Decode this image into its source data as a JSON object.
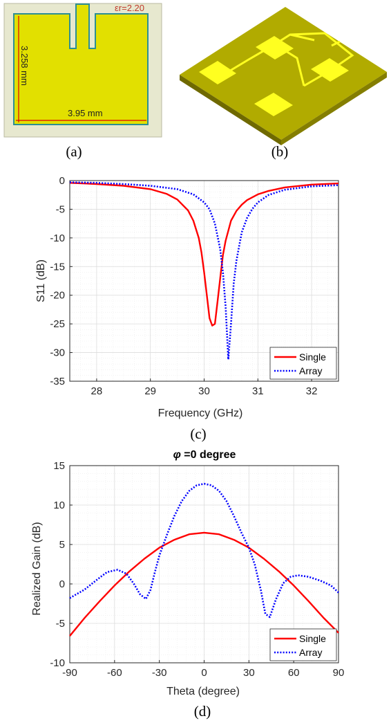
{
  "figure_a": {
    "caption": "(a)",
    "epsilon_label": "εr=2.20",
    "height_label": "3.258 mm",
    "width_label": "3.95 mm",
    "colors": {
      "background": "#e7e8cf",
      "patch": "#e2e000",
      "edge": "#2d8e93",
      "dim": "#e00000"
    }
  },
  "figure_b": {
    "caption": "(b)",
    "colors": {
      "substrate_top": "#b1ab00",
      "substrate_side": "#6f6900",
      "patch": "#ffff20"
    }
  },
  "chart_data": [
    {
      "type": "line",
      "caption": "(c)",
      "title": "",
      "xlabel": "Frequency (GHz)",
      "ylabel": "S11 (dB)",
      "xlim": [
        27.5,
        32.5
      ],
      "ylim": [
        -35,
        0
      ],
      "xticks": [
        "28",
        "29",
        "30",
        "31",
        "32"
      ],
      "xtick_values": [
        28,
        29,
        30,
        31,
        32
      ],
      "yticks": [
        "0",
        "-5",
        "-10",
        "-15",
        "-20",
        "-25",
        "-30",
        "-35"
      ],
      "ytick_values": [
        0,
        -5,
        -10,
        -15,
        -20,
        -25,
        -30,
        -35
      ],
      "grid": true,
      "legend_position": "bottom-right",
      "series": [
        {
          "name": "Single",
          "color": "#ff0000",
          "style": "solid",
          "x": [
            27.5,
            28,
            28.5,
            29,
            29.3,
            29.5,
            29.7,
            29.8,
            29.9,
            29.95,
            30,
            30.05,
            30.1,
            30.15,
            30.2,
            30.25,
            30.3,
            30.35,
            30.4,
            30.5,
            30.6,
            30.7,
            30.8,
            31,
            31.2,
            31.5,
            32,
            32.5
          ],
          "y": [
            -0.4,
            -0.6,
            -0.9,
            -1.5,
            -2.3,
            -3.3,
            -5.2,
            -7,
            -10,
            -12.5,
            -16,
            -20,
            -24,
            -25.3,
            -25,
            -21,
            -17,
            -13,
            -10.5,
            -7,
            -5.3,
            -4.2,
            -3.4,
            -2.4,
            -1.8,
            -1.2,
            -0.7,
            -0.5
          ]
        },
        {
          "name": "Array",
          "color": "#0000ff",
          "style": "dotted",
          "x": [
            27.5,
            28,
            28.5,
            29,
            29.5,
            29.8,
            30,
            30.1,
            30.2,
            30.3,
            30.35,
            30.4,
            30.45,
            30.5,
            30.55,
            30.6,
            30.7,
            30.8,
            30.9,
            31,
            31.2,
            31.5,
            32,
            32.5
          ],
          "y": [
            -0.3,
            -0.4,
            -0.6,
            -0.9,
            -1.5,
            -2.4,
            -3.8,
            -5,
            -7.5,
            -12,
            -16,
            -22,
            -31.2,
            -25,
            -18,
            -14,
            -9,
            -6.5,
            -4.9,
            -3.8,
            -2.5,
            -1.6,
            -1,
            -0.8
          ]
        }
      ]
    },
    {
      "type": "line",
      "caption": "(d)",
      "title_symbol": "φ",
      "title_rest": " =0 degree",
      "xlabel": "Theta (degree)",
      "ylabel": "Realized Gain (dB)",
      "xlim": [
        -90,
        90
      ],
      "ylim": [
        -10,
        15
      ],
      "xticks": [
        "-90",
        "-60",
        "-30",
        "0",
        "30",
        "60",
        "90"
      ],
      "xtick_values": [
        -90,
        -60,
        -30,
        0,
        30,
        60,
        90
      ],
      "yticks": [
        "15",
        "10",
        "5",
        "0",
        "-5",
        "-10"
      ],
      "ytick_values": [
        15,
        10,
        5,
        0,
        -5,
        -10
      ],
      "grid": true,
      "legend_position": "bottom-right",
      "series": [
        {
          "name": "Single",
          "color": "#ff0000",
          "style": "solid",
          "x": [
            -90,
            -80,
            -70,
            -60,
            -50,
            -40,
            -30,
            -20,
            -10,
            0,
            10,
            20,
            30,
            40,
            50,
            60,
            70,
            80,
            90
          ],
          "y": [
            -6.6,
            -4.3,
            -2.2,
            -0.2,
            1.6,
            3.2,
            4.6,
            5.6,
            6.3,
            6.5,
            6.3,
            5.6,
            4.6,
            3.2,
            1.6,
            -0.2,
            -2.2,
            -4.3,
            -6.2
          ]
        },
        {
          "name": "Array",
          "color": "#0000ff",
          "style": "dotted",
          "x": [
            -90,
            -80,
            -70,
            -65,
            -58,
            -52,
            -47,
            -43,
            -39,
            -36,
            -33,
            -30,
            -25,
            -20,
            -15,
            -10,
            -5,
            0,
            5,
            10,
            15,
            20,
            25,
            30,
            34,
            38,
            41,
            44,
            48,
            53,
            58,
            63,
            70,
            78,
            85,
            90
          ],
          "y": [
            -1.8,
            -0.7,
            0.8,
            1.5,
            1.8,
            1.3,
            0,
            -1.3,
            -1.9,
            -0.8,
            1.5,
            3.6,
            6.2,
            8.6,
            10.5,
            11.8,
            12.5,
            12.7,
            12.5,
            11.8,
            10.5,
            8.6,
            6.5,
            4.6,
            2.4,
            -0.8,
            -3.8,
            -4.2,
            -2,
            0.1,
            0.9,
            1.1,
            0.9,
            0.4,
            -0.2,
            -1.1
          ]
        }
      ]
    }
  ]
}
